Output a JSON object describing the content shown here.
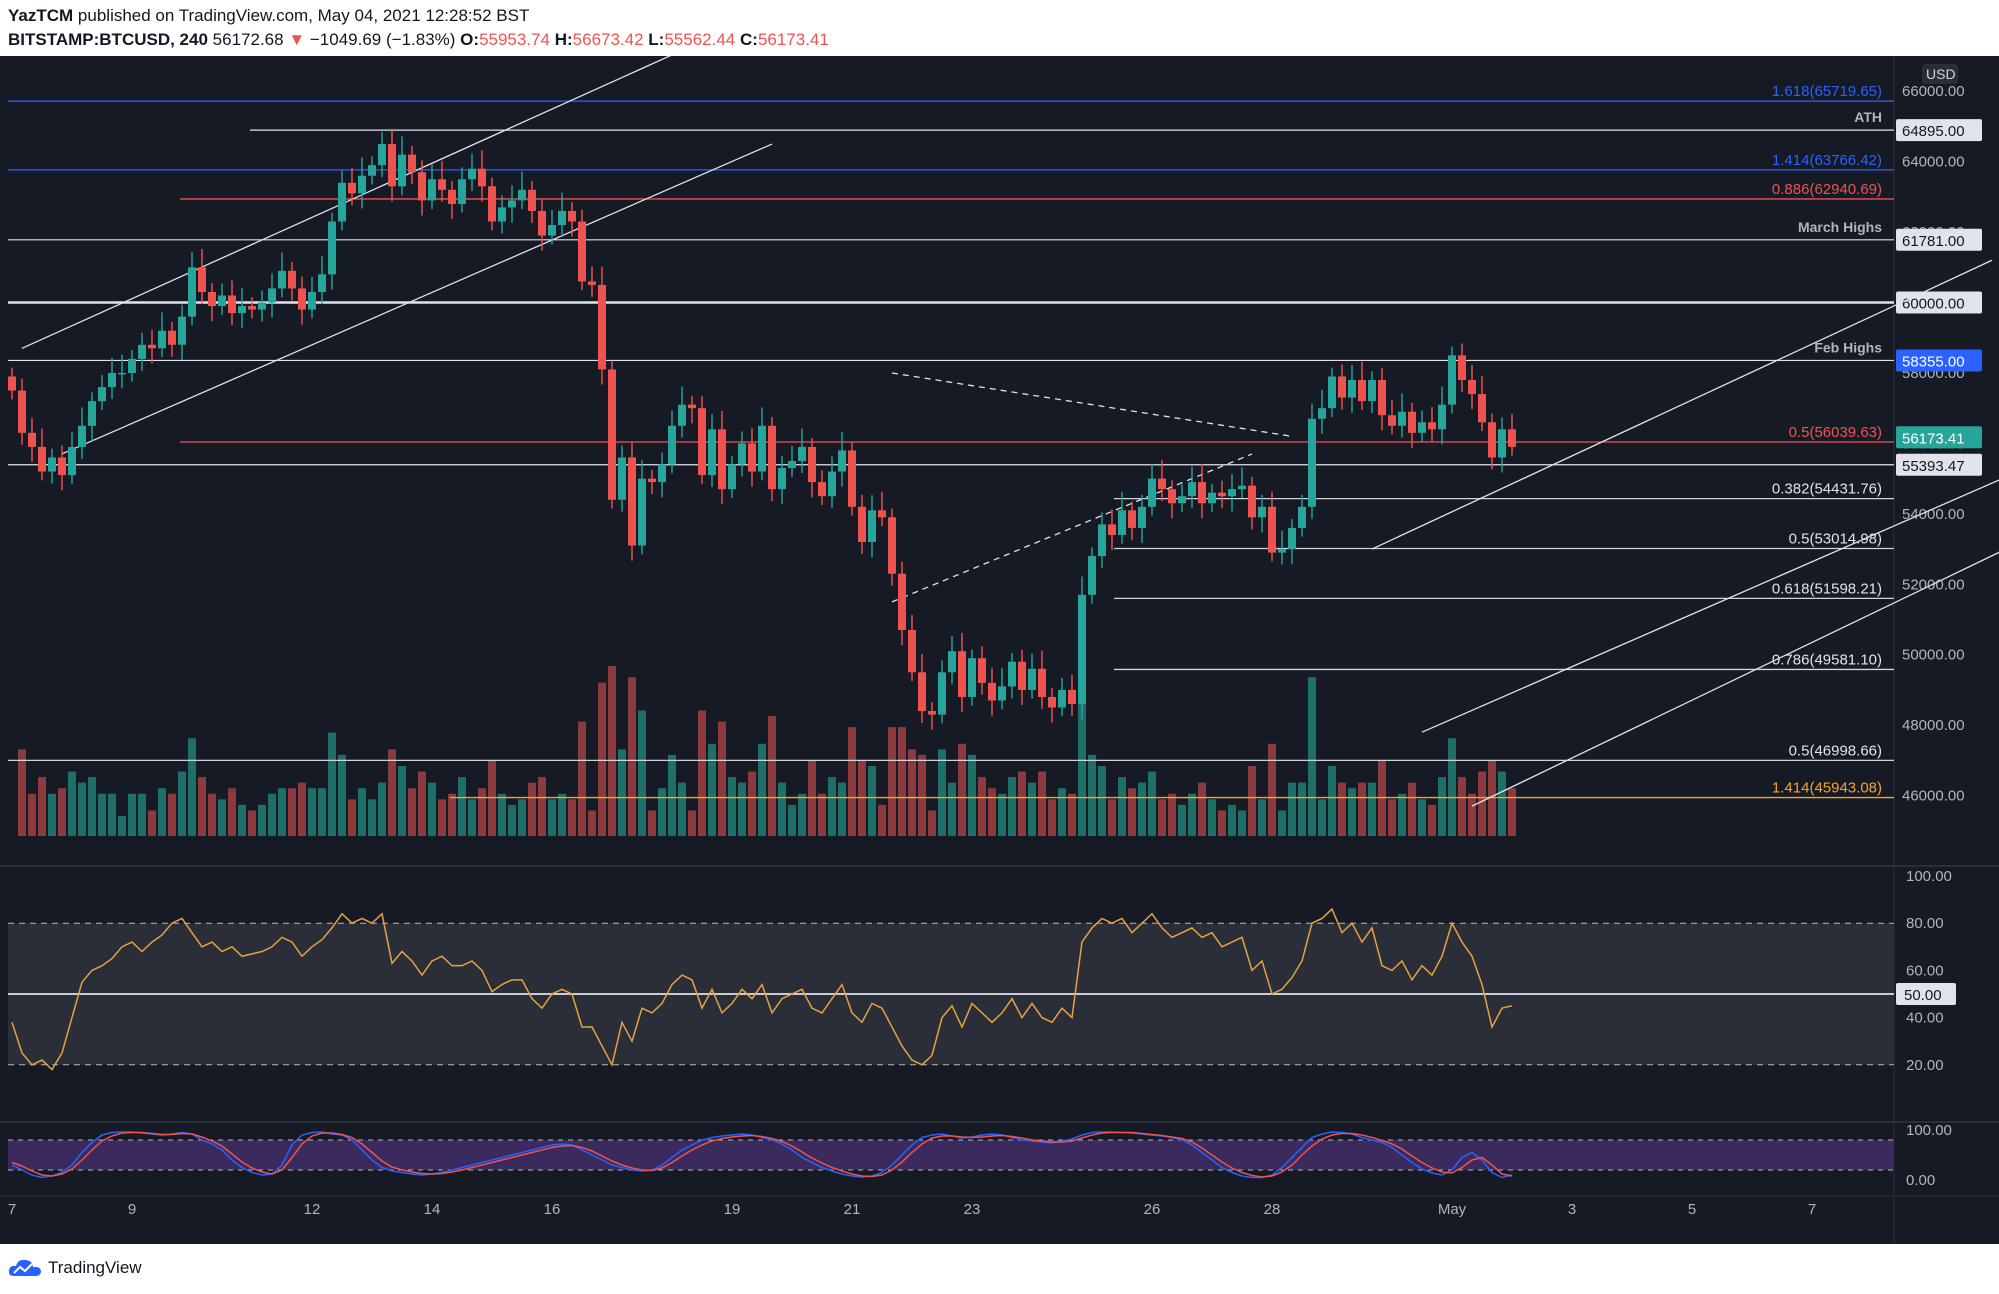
{
  "header": {
    "author": "YazTCM",
    "published": "published on TradingView.com, May 04, 2021 12:28:52 BST",
    "symbol": "BITSTAMP:BTCUSD, 240",
    "price": "56172.68",
    "change": "−1049.69 (−1.83%)",
    "o_label": "O:",
    "o_value": "55953.74",
    "h_label": "H:",
    "h_value": "56673.42",
    "l_label": "L:",
    "l_value": "55562.44",
    "c_label": "C:",
    "c_value": "56173.41"
  },
  "footer": {
    "brand": "TradingView"
  },
  "colors": {
    "background": "#161a25",
    "up": "#26a69a",
    "down": "#ef5350",
    "rsi": "#e6a23c",
    "stoch_k": "#2962ff",
    "stoch_d": "#ef5350",
    "fib_blue": "#2962ff",
    "fib_orange": "#f5a623"
  },
  "chart_data": {
    "type": "candlestick",
    "currency": "USD",
    "price_axis": [
      "46000.00",
      "48000.00",
      "50000.00",
      "52000.00",
      "54000.00",
      "56000.00",
      "58000.00",
      "60000.00",
      "62000.00",
      "64000.00",
      "66000.00"
    ],
    "price_range": [
      44000,
      67000
    ],
    "date_axis": [
      {
        "label": "7",
        "idx": 0
      },
      {
        "label": "9",
        "idx": 12
      },
      {
        "label": "12",
        "idx": 30
      },
      {
        "label": "14",
        "idx": 42
      },
      {
        "label": "16",
        "idx": 54
      },
      {
        "label": "19",
        "idx": 72
      },
      {
        "label": "21",
        "idx": 84
      },
      {
        "label": "23",
        "idx": 96
      },
      {
        "label": "26",
        "idx": 114
      },
      {
        "label": "28",
        "idx": 126
      },
      {
        "label": "May",
        "idx": 144
      },
      {
        "label": "3",
        "idx": 156
      },
      {
        "label": "5",
        "idx": 168
      },
      {
        "label": "7",
        "idx": 180
      }
    ],
    "closes": [
      57500,
      56300,
      55900,
      55200,
      55600,
      55100,
      55900,
      56500,
      57200,
      57600,
      58000,
      58000,
      58400,
      58800,
      58700,
      59200,
      58800,
      59600,
      61000,
      60300,
      59900,
      60200,
      59700,
      59900,
      59800,
      60000,
      60400,
      60900,
      60400,
      59800,
      60300,
      60800,
      62300,
      63400,
      63100,
      63600,
      63900,
      64500,
      63300,
      64200,
      63700,
      62900,
      63500,
      63200,
      62800,
      63500,
      63800,
      63300,
      62300,
      62700,
      62900,
      63200,
      62600,
      61900,
      62200,
      62600,
      62300,
      60600,
      60500,
      58100,
      54400,
      55600,
      53100,
      55000,
      54900,
      55400,
      56500,
      57100,
      57000,
      55100,
      56400,
      54700,
      55400,
      56000,
      55200,
      56500,
      54700,
      55300,
      55500,
      55900,
      54900,
      54500,
      55200,
      55800,
      54200,
      53200,
      54100,
      53900,
      52300,
      50700,
      49500,
      48400,
      48300,
      49500,
      50100,
      48800,
      49900,
      49200,
      48700,
      49100,
      49800,
      49000,
      49600,
      48800,
      48500,
      49000,
      48600,
      51700,
      52800,
      53700,
      53400,
      54100,
      53600,
      54200,
      55000,
      54700,
      54300,
      54500,
      54900,
      54300,
      54600,
      54500,
      54700,
      54800,
      53900,
      54200,
      52900,
      53000,
      53600,
      54200,
      56700,
      57000,
      57900,
      57300,
      57800,
      57200,
      57800,
      56800,
      56500,
      56900,
      56300,
      56600,
      56400,
      57100,
      58500,
      57800,
      57400,
      56600,
      55600,
      56400,
      55900
    ],
    "fib_levels": [
      {
        "label": "1.618(65719.65)",
        "price": 65719.65,
        "color": "#2962ff"
      },
      {
        "label": "1.414(63766.42)",
        "price": 63766.42,
        "color": "#2962ff"
      },
      {
        "label": "0.886(62940.69)",
        "price": 62940.69,
        "color": "#ef5350"
      },
      {
        "label": "0.5(56039.63)",
        "price": 56039.63,
        "color": "#ef5350"
      },
      {
        "label": "0.382(54431.76)",
        "price": 54431.76,
        "color": "#d1d4dc"
      },
      {
        "label": "0.5(53014.98)",
        "price": 53014.98,
        "color": "#d1d4dc"
      },
      {
        "label": "0.618(51598.21)",
        "price": 51598.21,
        "color": "#d1d4dc"
      },
      {
        "label": "0.786(49581.10)",
        "price": 49581.1,
        "color": "#d1d4dc"
      },
      {
        "label": "0.5(46998.66)",
        "price": 46998.66,
        "color": "#d1d4dc"
      },
      {
        "label": "1.414(45943.08)",
        "price": 45943.08,
        "color": "#f5a623"
      }
    ],
    "levels": [
      {
        "label": "ATH",
        "price": 64895,
        "tag": "64895.00"
      },
      {
        "label": "March Highs",
        "price": 61781,
        "tag": "61781.00"
      },
      {
        "label": "",
        "price": 60000,
        "tag": "60000.00"
      },
      {
        "label": "Feb Highs",
        "price": 58355,
        "tag": "58355.00"
      },
      {
        "label": "",
        "price": 55393.47,
        "tag": "55393.47"
      }
    ],
    "last_price_tag": "56173.41",
    "rsi": {
      "axis": [
        "100.00",
        "80.00",
        "60.00",
        "40.00",
        "20.00"
      ],
      "midline_tag": "50.00",
      "values": [
        38,
        25,
        20,
        22,
        18,
        25,
        40,
        55,
        60,
        62,
        65,
        70,
        72,
        68,
        72,
        75,
        80,
        82,
        76,
        70,
        72,
        68,
        70,
        66,
        67,
        68,
        70,
        74,
        72,
        66,
        70,
        73,
        78,
        84,
        80,
        82,
        80,
        84,
        63,
        68,
        64,
        58,
        64,
        66,
        62,
        62,
        64,
        60,
        51,
        54,
        56,
        56,
        48,
        44,
        50,
        52,
        50,
        36,
        36,
        28,
        20,
        38,
        30,
        44,
        42,
        46,
        54,
        58,
        56,
        44,
        52,
        42,
        46,
        52,
        48,
        54,
        42,
        48,
        50,
        52,
        44,
        42,
        48,
        54,
        42,
        38,
        46,
        44,
        36,
        28,
        22,
        20,
        24,
        40,
        45,
        36,
        46,
        42,
        38,
        42,
        48,
        40,
        46,
        40,
        38,
        44,
        40,
        72,
        78,
        82,
        80,
        82,
        76,
        80,
        84,
        78,
        74,
        76,
        78,
        74,
        76,
        70,
        72,
        74,
        60,
        64,
        50,
        52,
        57,
        64,
        80,
        82,
        86,
        76,
        80,
        72,
        78,
        62,
        60,
        64,
        56,
        62,
        58,
        66,
        80,
        72,
        66,
        54,
        36,
        44,
        45
      ],
      "overbought": 80,
      "oversold": 20
    },
    "stoch_rsi": {
      "axis": [
        "100.00",
        "0.00"
      ],
      "k": [
        30,
        20,
        10,
        5,
        8,
        15,
        30,
        55,
        75,
        90,
        95,
        96,
        96,
        94,
        92,
        90,
        92,
        95,
        92,
        80,
        72,
        60,
        40,
        25,
        15,
        10,
        12,
        30,
        70,
        90,
        95,
        96,
        92,
        90,
        80,
        60,
        40,
        25,
        18,
        15,
        12,
        10,
        12,
        15,
        20,
        25,
        30,
        35,
        40,
        45,
        50,
        55,
        60,
        65,
        70,
        72,
        70,
        60,
        50,
        40,
        30,
        25,
        20,
        18,
        20,
        30,
        45,
        60,
        70,
        80,
        85,
        88,
        90,
        92,
        90,
        85,
        80,
        72,
        60,
        45,
        35,
        25,
        18,
        12,
        8,
        6,
        8,
        15,
        30,
        50,
        70,
        85,
        90,
        92,
        88,
        84,
        86,
        90,
        92,
        90,
        85,
        80,
        78,
        76,
        74,
        78,
        82,
        90,
        95,
        96,
        96,
        95,
        94,
        92,
        90,
        88,
        85,
        80,
        70,
        55,
        40,
        25,
        15,
        8,
        5,
        5,
        10,
        25,
        45,
        65,
        85,
        92,
        96,
        95,
        92,
        85,
        80,
        75,
        65,
        50,
        35,
        22,
        14,
        10,
        20,
        45,
        55,
        40,
        15,
        5,
        10
      ],
      "d": [
        35,
        28,
        18,
        10,
        8,
        12,
        22,
        40,
        60,
        78,
        88,
        94,
        95,
        95,
        93,
        91,
        91,
        93,
        92,
        86,
        78,
        68,
        52,
        36,
        24,
        16,
        12,
        20,
        45,
        72,
        88,
        94,
        94,
        91,
        85,
        72,
        55,
        38,
        26,
        20,
        16,
        13,
        12,
        13,
        16,
        20,
        25,
        30,
        35,
        40,
        45,
        50,
        55,
        60,
        65,
        68,
        69,
        65,
        58,
        48,
        38,
        30,
        24,
        20,
        19,
        24,
        35,
        48,
        60,
        70,
        78,
        83,
        86,
        88,
        89,
        87,
        83,
        77,
        68,
        56,
        44,
        34,
        25,
        18,
        12,
        8,
        7,
        10,
        20,
        36,
        55,
        72,
        84,
        88,
        88,
        86,
        85,
        86,
        88,
        89,
        87,
        84,
        80,
        78,
        76,
        76,
        78,
        84,
        90,
        94,
        95,
        95,
        95,
        93,
        91,
        89,
        86,
        83,
        76,
        64,
        50,
        36,
        24,
        15,
        9,
        6,
        8,
        16,
        30,
        50,
        68,
        82,
        90,
        93,
        93,
        90,
        85,
        79,
        72,
        62,
        48,
        35,
        24,
        16,
        14,
        25,
        40,
        45,
        30,
        12,
        8
      ],
      "upper": 80,
      "lower": 20
    },
    "channels": [
      {
        "style": "solid",
        "x1": 1,
        "p1": 58700,
        "x2": 72,
        "p2": 67800
      },
      {
        "style": "solid",
        "x1": 5,
        "p1": 55700,
        "x2": 76,
        "p2": 64500
      },
      {
        "style": "solid",
        "x1": 136,
        "p1": 53000,
        "x2": 198,
        "p2": 61200
      },
      {
        "style": "solid",
        "x1": 141,
        "p1": 47800,
        "x2": 220,
        "p2": 57600
      },
      {
        "style": "solid",
        "x1": 146,
        "p1": 45700,
        "x2": 225,
        "p2": 56500
      },
      {
        "style": "dashed",
        "x1": 88,
        "p1": 58000,
        "x2": 128,
        "p2": 56200
      },
      {
        "style": "dashed",
        "x1": 88,
        "p1": 51500,
        "x2": 124,
        "p2": 55700
      }
    ]
  }
}
